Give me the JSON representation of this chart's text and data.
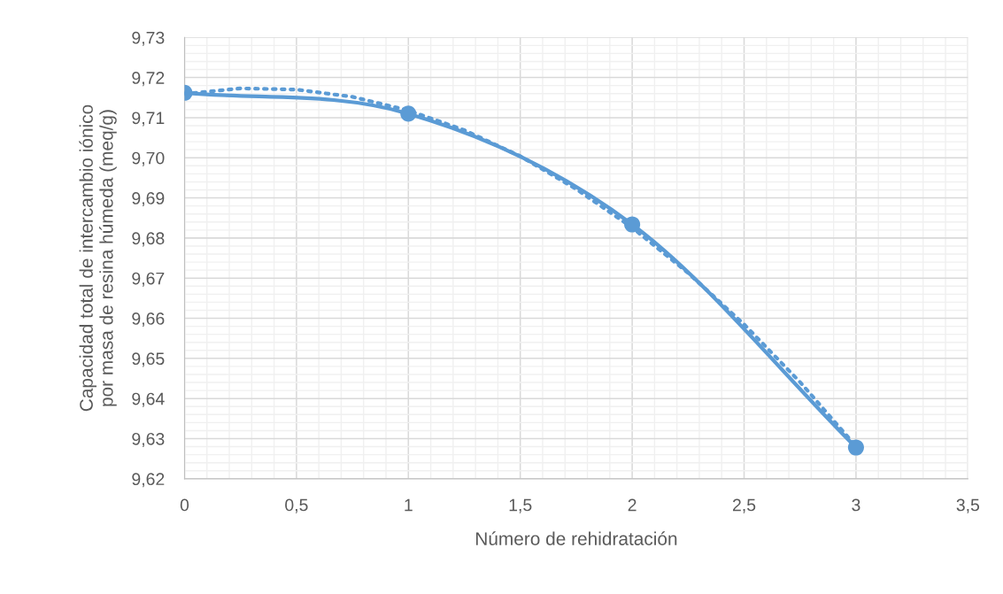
{
  "chart_data": {
    "type": "line",
    "xlabel": "Número de rehidratación",
    "ylabel": "Capacidad total de intercambio iónico\npor masa de resina húmeda (meq/g)",
    "x": [
      0,
      1,
      2,
      3
    ],
    "series": [
      {
        "type": "line",
        "color": "#5b9bd5",
        "marker": "circle",
        "line_style": "solid",
        "values": [
          9.7162,
          9.711,
          9.6834,
          9.6278
        ]
      },
      {
        "type": "line",
        "color": "#5b9bd5",
        "marker": "none",
        "line_style": "dotted",
        "x": [
          0,
          0.25,
          0.5,
          0.75,
          1,
          1.25,
          1.5,
          1.75,
          2,
          2.25,
          2.5,
          2.75,
          3
        ],
        "values": [
          9.7159,
          9.7173,
          9.717,
          9.7152,
          9.7118,
          9.7069,
          9.7004,
          9.6922,
          9.6826,
          9.6713,
          9.6585,
          9.6441,
          9.6281
        ]
      }
    ],
    "xlim": [
      0,
      3.5
    ],
    "xticks": [
      0,
      {
        "value": 0.5,
        "label": "0,5"
      },
      1,
      {
        "value": 1.5,
        "label": "1,5"
      },
      2,
      {
        "value": 2.5,
        "label": "2,5"
      },
      3,
      {
        "value": 3.5,
        "label": "3,5"
      }
    ],
    "ylim": [
      9.62,
      9.73
    ],
    "yticks": [
      {
        "value": 9.62,
        "label": "9,62"
      },
      {
        "value": 9.63,
        "label": "9,63"
      },
      {
        "value": 9.64,
        "label": "9,64"
      },
      {
        "value": 9.65,
        "label": "9,65"
      },
      {
        "value": 9.66,
        "label": "9,66"
      },
      {
        "value": 9.67,
        "label": "9,67"
      },
      {
        "value": 9.68,
        "label": "9,68"
      },
      {
        "value": 9.69,
        "label": "9,69"
      },
      {
        "value": 9.7,
        "label": "9,70"
      },
      {
        "value": 9.71,
        "label": "9,71"
      },
      {
        "value": 9.72,
        "label": "9,72"
      },
      {
        "value": 9.73,
        "label": "9,73"
      }
    ],
    "grid": true,
    "legend": false
  }
}
